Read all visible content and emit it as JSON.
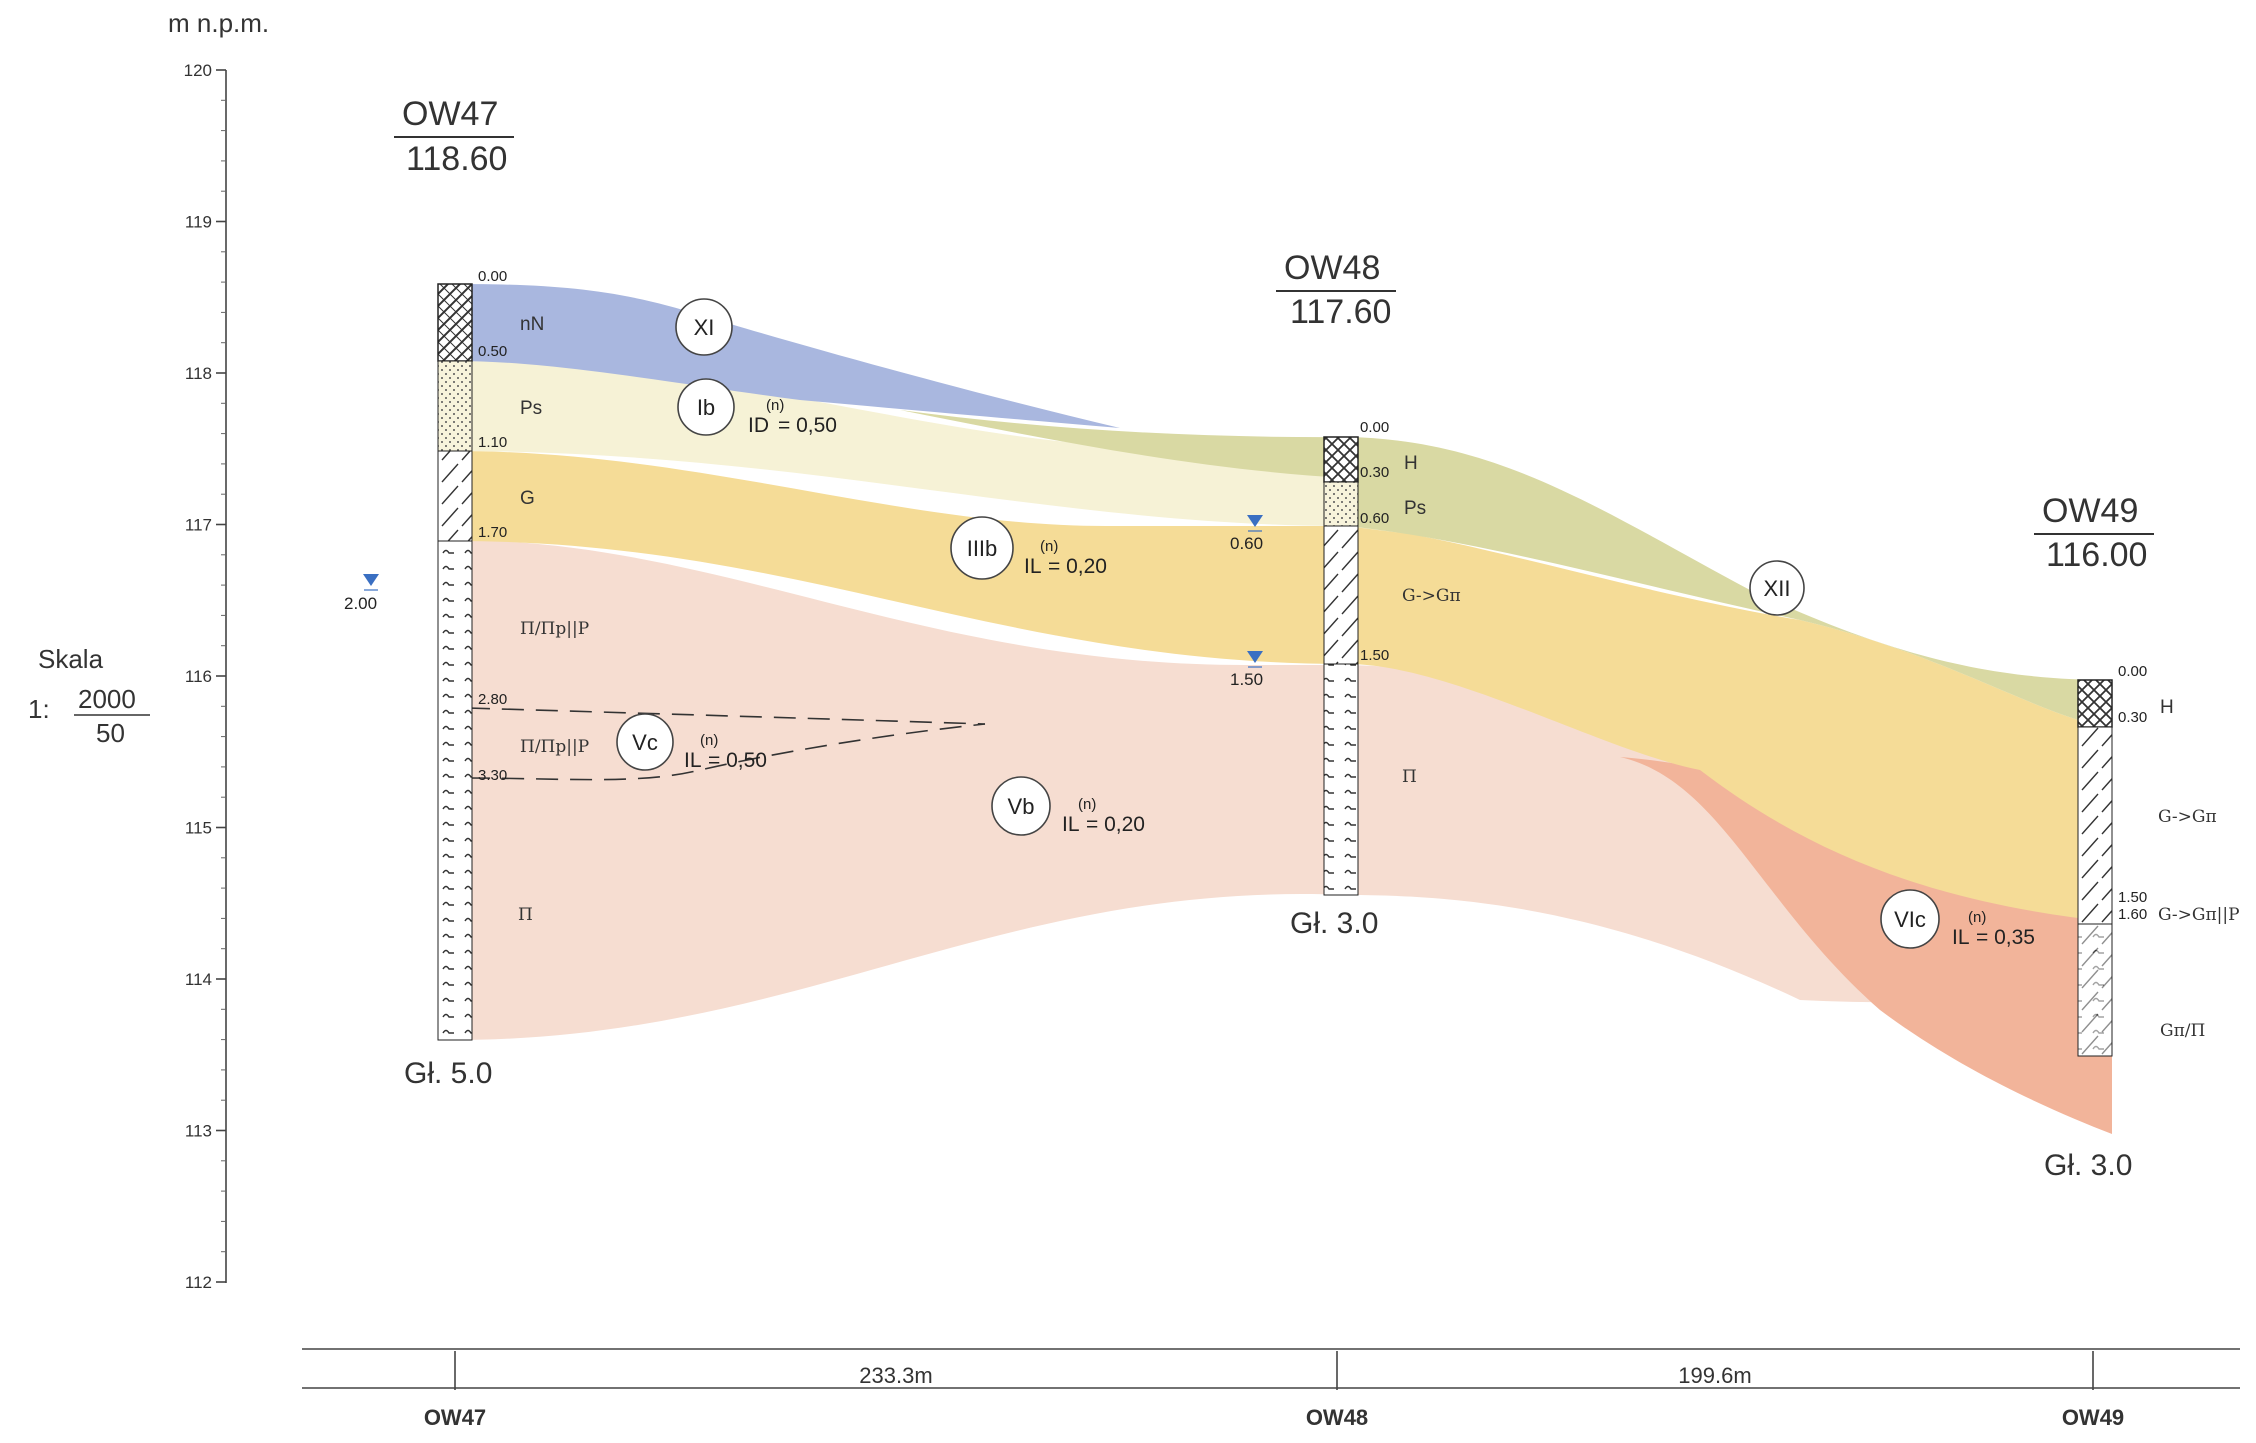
{
  "axis": {
    "unit_label": "m n.p.m.",
    "ticks": [
      "120",
      "119",
      "118",
      "117",
      "116",
      "115",
      "114",
      "113",
      "112"
    ]
  },
  "scale": {
    "label": "Skala",
    "prefix": "1:",
    "horizontal": "2000",
    "vertical": "50"
  },
  "boreholes": [
    {
      "name": "OW47",
      "elevation": "118.60",
      "final_depth": "Gł. 5.0",
      "depths": [
        "0.00",
        "0.50",
        "1.10",
        "1.70",
        "2.80",
        "3.30"
      ],
      "water_level": "2.00",
      "soils": [
        "nN",
        "Ps",
        "G",
        "Π/Πp||P",
        "Π/Πp||P",
        "Π"
      ]
    },
    {
      "name": "OW48",
      "elevation": "117.60",
      "final_depth": "Gł. 3.0",
      "depths": [
        "0.00",
        "0.30",
        "0.60",
        "1.50"
      ],
      "water_levels": [
        "0.60",
        "1.50"
      ],
      "soils": [
        "H",
        "Ps",
        "G->Gπ",
        "Π"
      ]
    },
    {
      "name": "OW49",
      "elevation": "116.00",
      "final_depth": "Gł. 3.0",
      "depths": [
        "0.00",
        "0.30",
        "1.50",
        "1.60"
      ],
      "soils": [
        "H",
        "G->Gπ",
        "G->Gπ||P",
        "Gπ/Π"
      ]
    }
  ],
  "layers": [
    {
      "id": "XI",
      "param": ""
    },
    {
      "id": "Ib",
      "param_name": "ID",
      "param_sup": "(n)",
      "param_value": "= 0,50"
    },
    {
      "id": "IIIb",
      "param_name": "IL",
      "param_sup": "(n)",
      "param_value": "= 0,20"
    },
    {
      "id": "Vc",
      "param_name": "IL",
      "param_sup": "(n)",
      "param_value": "= 0,50"
    },
    {
      "id": "Vb",
      "param_name": "IL",
      "param_sup": "(n)",
      "param_value": "= 0,20"
    },
    {
      "id": "XII",
      "param": ""
    },
    {
      "id": "VIc",
      "param_name": "IL",
      "param_sup": "(n)",
      "param_value": "= 0,35"
    }
  ],
  "distances": [
    "233.3m",
    "199.6m"
  ],
  "bottom_labels": [
    "OW47",
    "OW48",
    "OW49"
  ],
  "colors": {
    "peat_blue": "#a9b7df",
    "sand_cream": "#f6f2d6",
    "clay_yellow": "#f5dc97",
    "dust_pink": "#f6ddd1",
    "organic_olive": "#d9d9a3",
    "silty_orange": "#f2b49a",
    "water_marker": "#3a6fc2"
  }
}
